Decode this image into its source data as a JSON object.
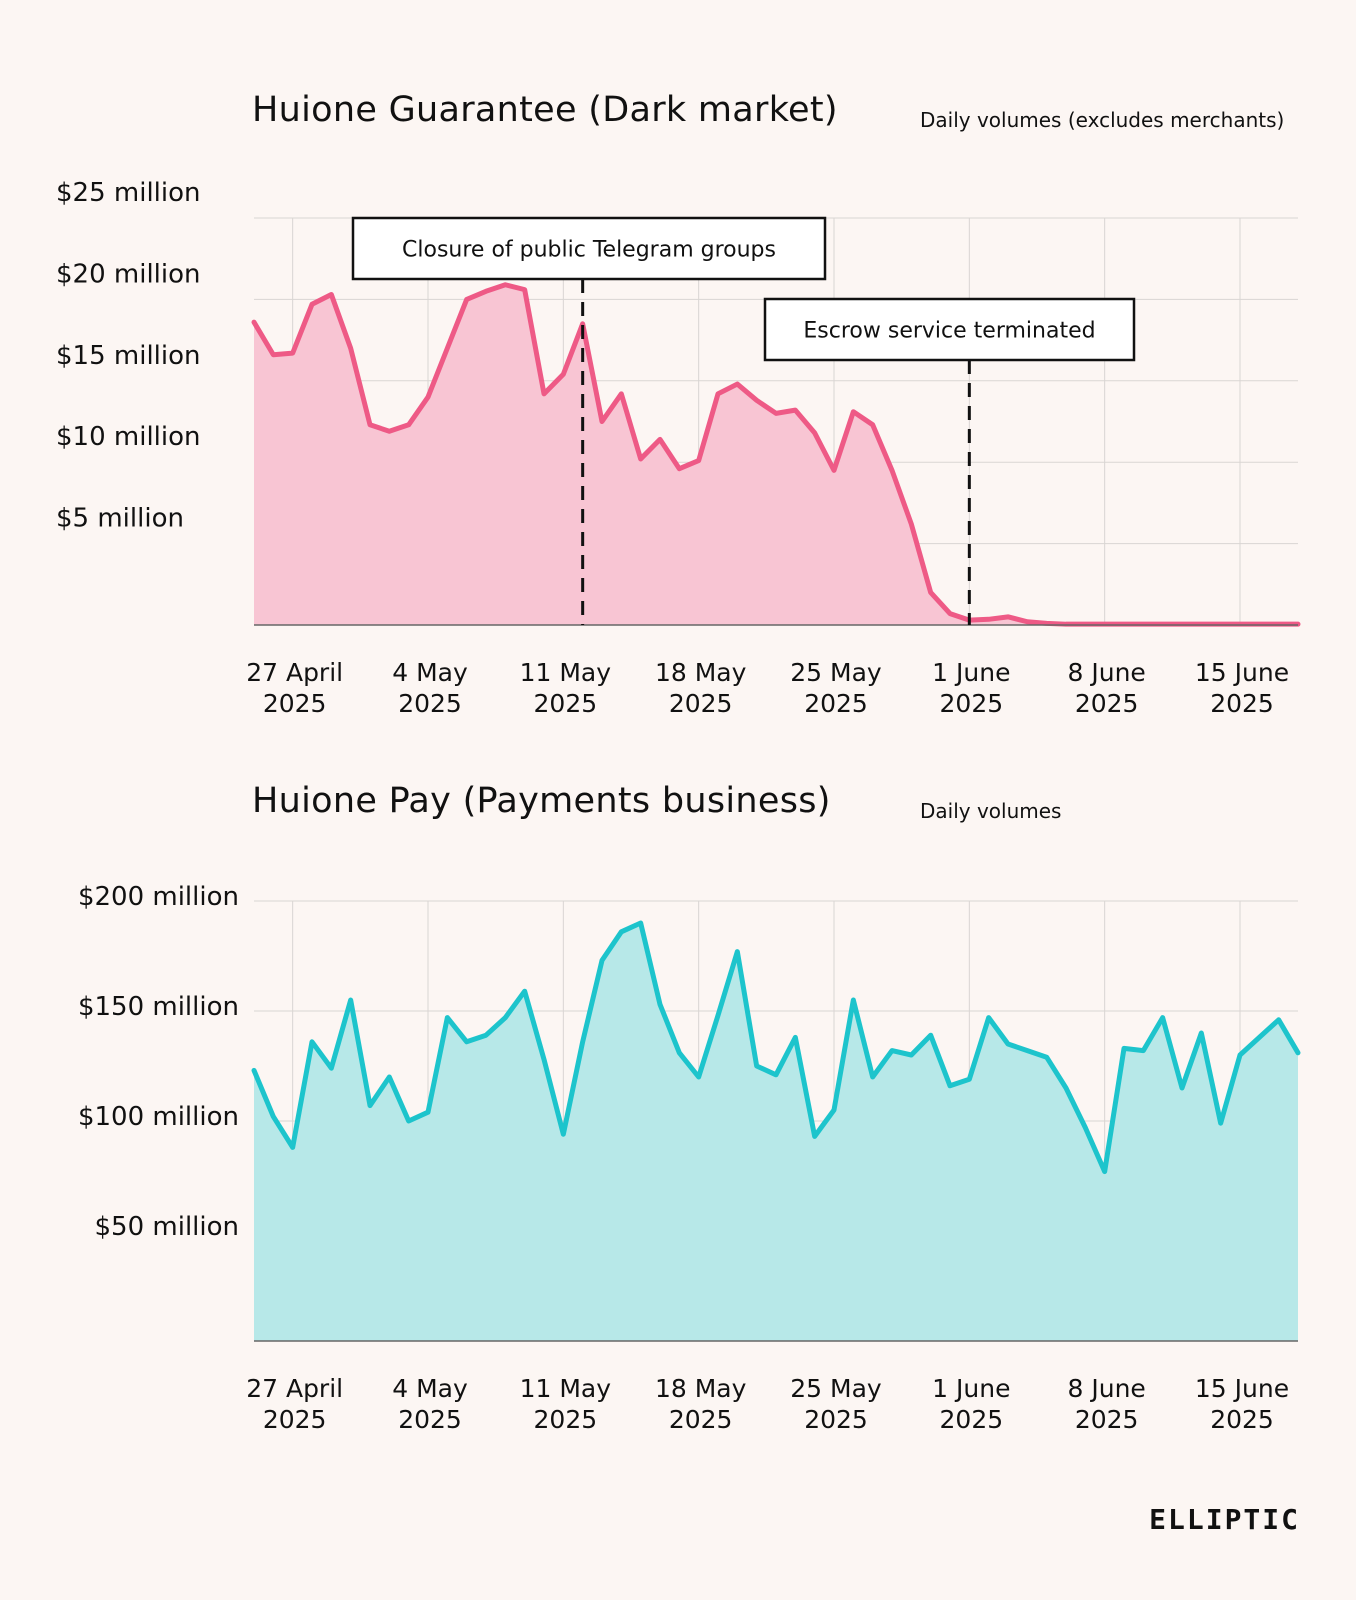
{
  "chart_data": [
    {
      "type": "area",
      "title": "Huione Guarantee (Dark market)",
      "subtitle": "Daily volumes (excludes merchants)",
      "x_tick_labels": [
        [
          "27 April",
          "2025"
        ],
        [
          "4 May",
          "2025"
        ],
        [
          "11 May",
          "2025"
        ],
        [
          "18 May",
          "2025"
        ],
        [
          "25 May",
          "2025"
        ],
        [
          "1 June",
          "2025"
        ],
        [
          "8 June",
          "2025"
        ],
        [
          "15 June",
          "2025"
        ]
      ],
      "x_tick_dates": [
        "2025-04-27",
        "2025-05-04",
        "2025-05-11",
        "2025-05-18",
        "2025-05-25",
        "2025-06-01",
        "2025-06-08",
        "2025-06-15"
      ],
      "x_range": [
        "2025-04-25",
        "2025-06-18"
      ],
      "y_ticks": [
        0,
        5,
        10,
        15,
        20,
        25
      ],
      "y_tick_labels": [
        "",
        "$5 million",
        "$10 million",
        "$15 million",
        "$20 million",
        "$25 million"
      ],
      "ylim": [
        0,
        25
      ],
      "y_unit": "million USD",
      "grid": true,
      "color": "#ee5a86",
      "fill_color": "#f8c5d3",
      "x": [
        "2025-04-25",
        "2025-04-26",
        "2025-04-27",
        "2025-04-28",
        "2025-04-29",
        "2025-04-30",
        "2025-05-01",
        "2025-05-02",
        "2025-05-03",
        "2025-05-04",
        "2025-05-05",
        "2025-05-06",
        "2025-05-07",
        "2025-05-08",
        "2025-05-09",
        "2025-05-10",
        "2025-05-11",
        "2025-05-12",
        "2025-05-13",
        "2025-05-14",
        "2025-05-15",
        "2025-05-16",
        "2025-05-17",
        "2025-05-18",
        "2025-05-19",
        "2025-05-20",
        "2025-05-21",
        "2025-05-22",
        "2025-05-23",
        "2025-05-24",
        "2025-05-25",
        "2025-05-26",
        "2025-05-27",
        "2025-05-28",
        "2025-05-29",
        "2025-05-30",
        "2025-05-31",
        "2025-06-01",
        "2025-06-02",
        "2025-06-03",
        "2025-06-04",
        "2025-06-05",
        "2025-06-06",
        "2025-06-07",
        "2025-06-08",
        "2025-06-09",
        "2025-06-10",
        "2025-06-11",
        "2025-06-12",
        "2025-06-13",
        "2025-06-14",
        "2025-06-15",
        "2025-06-16",
        "2025-06-17",
        "2025-06-18"
      ],
      "values": [
        18.6,
        16.6,
        16.7,
        19.7,
        20.3,
        17.0,
        12.3,
        11.9,
        12.3,
        14.0,
        17.0,
        20.0,
        20.5,
        20.9,
        20.6,
        14.2,
        15.4,
        18.5,
        12.5,
        14.2,
        10.2,
        11.4,
        9.6,
        10.1,
        14.2,
        14.8,
        13.8,
        13.0,
        13.2,
        11.8,
        9.5,
        13.1,
        12.3,
        9.5,
        6.2,
        2.0,
        0.7,
        0.3,
        0.35,
        0.5,
        0.2,
        0.1,
        0.05,
        0.05,
        0.05,
        0.05,
        0.05,
        0.05,
        0.05,
        0.05,
        0.05,
        0.05,
        0.05,
        0.05,
        0.05
      ],
      "annotations": [
        {
          "label": "Closure of public Telegram groups",
          "date": "2025-05-12"
        },
        {
          "label": "Escrow service terminated",
          "date": "2025-06-01"
        }
      ]
    },
    {
      "type": "area",
      "title": "Huione Pay (Payments business)",
      "subtitle": "Daily volumes",
      "x_tick_labels": [
        [
          "27 April",
          "2025"
        ],
        [
          "4 May",
          "2025"
        ],
        [
          "11 May",
          "2025"
        ],
        [
          "18 May",
          "2025"
        ],
        [
          "25 May",
          "2025"
        ],
        [
          "1 June",
          "2025"
        ],
        [
          "8 June",
          "2025"
        ],
        [
          "15 June",
          "2025"
        ]
      ],
      "x_tick_dates": [
        "2025-04-27",
        "2025-05-04",
        "2025-05-11",
        "2025-05-18",
        "2025-05-25",
        "2025-06-01",
        "2025-06-08",
        "2025-06-15"
      ],
      "x_range": [
        "2025-04-25",
        "2025-06-18"
      ],
      "y_ticks": [
        0,
        50,
        100,
        150,
        200
      ],
      "y_tick_labels": [
        "",
        "$50 million",
        "$100 million",
        "$150 million",
        "$200 million"
      ],
      "ylim": [
        0,
        200
      ],
      "y_unit": "million USD",
      "grid": true,
      "color": "#1dc4cc",
      "fill_color": "#b7e8e8",
      "x": [
        "2025-04-25",
        "2025-04-26",
        "2025-04-27",
        "2025-04-28",
        "2025-04-29",
        "2025-04-30",
        "2025-05-01",
        "2025-05-02",
        "2025-05-03",
        "2025-05-04",
        "2025-05-05",
        "2025-05-06",
        "2025-05-07",
        "2025-05-08",
        "2025-05-09",
        "2025-05-10",
        "2025-05-11",
        "2025-05-12",
        "2025-05-13",
        "2025-05-14",
        "2025-05-15",
        "2025-05-16",
        "2025-05-17",
        "2025-05-18",
        "2025-05-19",
        "2025-05-20",
        "2025-05-21",
        "2025-05-22",
        "2025-05-23",
        "2025-05-24",
        "2025-05-25",
        "2025-05-26",
        "2025-05-27",
        "2025-05-28",
        "2025-05-29",
        "2025-05-30",
        "2025-05-31",
        "2025-06-01",
        "2025-06-02",
        "2025-06-03",
        "2025-06-04",
        "2025-06-05",
        "2025-06-06",
        "2025-06-07",
        "2025-06-08",
        "2025-06-09",
        "2025-06-10",
        "2025-06-11",
        "2025-06-12",
        "2025-06-13",
        "2025-06-14",
        "2025-06-15",
        "2025-06-16",
        "2025-06-17",
        "2025-06-18"
      ],
      "values": [
        123,
        102,
        88,
        136,
        124,
        155,
        107,
        120,
        100,
        104,
        147,
        136,
        139,
        147,
        159,
        128,
        94,
        136,
        173,
        186,
        190,
        153,
        131,
        120,
        148,
        177,
        125,
        121,
        138,
        93,
        105,
        155,
        120,
        132,
        130,
        139,
        116,
        119,
        147,
        135,
        132,
        129,
        115,
        97,
        77,
        133,
        132,
        147,
        115,
        140,
        99,
        130,
        138,
        146,
        131
      ]
    }
  ],
  "brand": {
    "logo_text": "ELLIPTIC"
  }
}
